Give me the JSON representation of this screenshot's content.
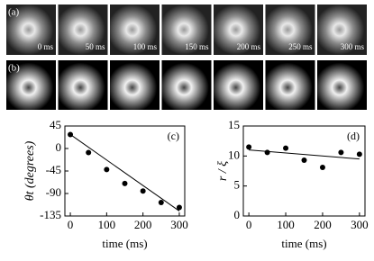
{
  "panels": {
    "a": {
      "label": "(a)",
      "frames": [
        "0 ms",
        "50 ms",
        "100 ms",
        "150 ms",
        "200 ms",
        "250 ms",
        "300 ms"
      ]
    },
    "b": {
      "label": "(b)"
    }
  },
  "chart_data": [
    {
      "type": "scatter",
      "annotation": "(c)",
      "x_label": "time (ms)",
      "y_label": "θt (degrees)",
      "x": [
        0,
        50,
        100,
        150,
        200,
        250,
        300
      ],
      "values": [
        28,
        -8,
        -42,
        -70,
        -85,
        -108,
        -118
      ],
      "fit": {
        "x": [
          0,
          300
        ],
        "y": [
          28,
          -125
        ]
      },
      "xlim": [
        -15,
        315
      ],
      "xticks": [
        0,
        100,
        200,
        300
      ],
      "ylim": [
        -135,
        45
      ],
      "yticks": [
        45,
        0,
        -45,
        -90,
        -135
      ],
      "color": "#000000"
    },
    {
      "type": "scatter",
      "annotation": "(d)",
      "x_label": "time (ms)",
      "y_label": "r / ξ",
      "x": [
        0,
        50,
        100,
        150,
        200,
        250,
        300
      ],
      "values": [
        11.5,
        10.6,
        11.3,
        9.3,
        8.1,
        10.6,
        10.3
      ],
      "fit": {
        "x": [
          0,
          300
        ],
        "y": [
          11,
          9.5
        ]
      },
      "xlim": [
        -15,
        315
      ],
      "xticks": [
        0,
        100,
        200,
        300
      ],
      "ylim": [
        0,
        15
      ],
      "yticks": [
        0,
        5,
        10,
        15
      ],
      "color": "#000000"
    }
  ]
}
